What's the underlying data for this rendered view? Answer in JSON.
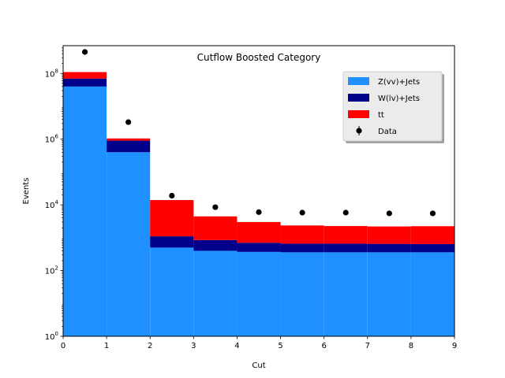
{
  "chart_data": {
    "type": "bar",
    "stacked": true,
    "title": "Cutflow Boosted Category",
    "xlabel": "Cut",
    "ylabel": "Events",
    "yscale": "log",
    "xlim": [
      0,
      9
    ],
    "ylim": [
      1,
      700000000
    ],
    "xticks": [
      "0",
      "1",
      "2",
      "3",
      "4",
      "5",
      "6",
      "7",
      "8",
      "9"
    ],
    "yticks": [
      {
        "base": "10",
        "exp": "0",
        "value": 1
      },
      {
        "base": "10",
        "exp": "2",
        "value": 100
      },
      {
        "base": "10",
        "exp": "4",
        "value": 10000
      },
      {
        "base": "10",
        "exp": "6",
        "value": 1000000
      },
      {
        "base": "10",
        "exp": "8",
        "value": 100000000
      }
    ],
    "bin_edges": [
      0,
      1,
      2,
      3,
      4,
      5,
      6,
      7,
      8,
      9
    ],
    "series": [
      {
        "name": "Z(vv)+Jets",
        "color": "#1e90ff",
        "values": [
          40000000,
          400000,
          500,
          400,
          370,
          360,
          360,
          360,
          360
        ]
      },
      {
        "name": "W(lv)+Jets",
        "color": "#00008b",
        "values": [
          30000000,
          500000,
          600,
          450,
          330,
          300,
          300,
          290,
          280
        ]
      },
      {
        "name": "tt",
        "color": "#ff0000",
        "values": [
          40000000,
          150000,
          12900,
          3600,
          2300,
          1700,
          1600,
          1550,
          1600
        ]
      }
    ],
    "data": {
      "name": "Data",
      "color": "#000000",
      "x": [
        0.5,
        1.5,
        2.5,
        3.5,
        4.5,
        5.5,
        6.5,
        7.5,
        8.5
      ],
      "y": [
        450000000,
        3300000,
        19000,
        8500,
        6000,
        5800,
        5800,
        5500,
        5500
      ]
    },
    "legend_position": "upper right",
    "grid": false
  }
}
